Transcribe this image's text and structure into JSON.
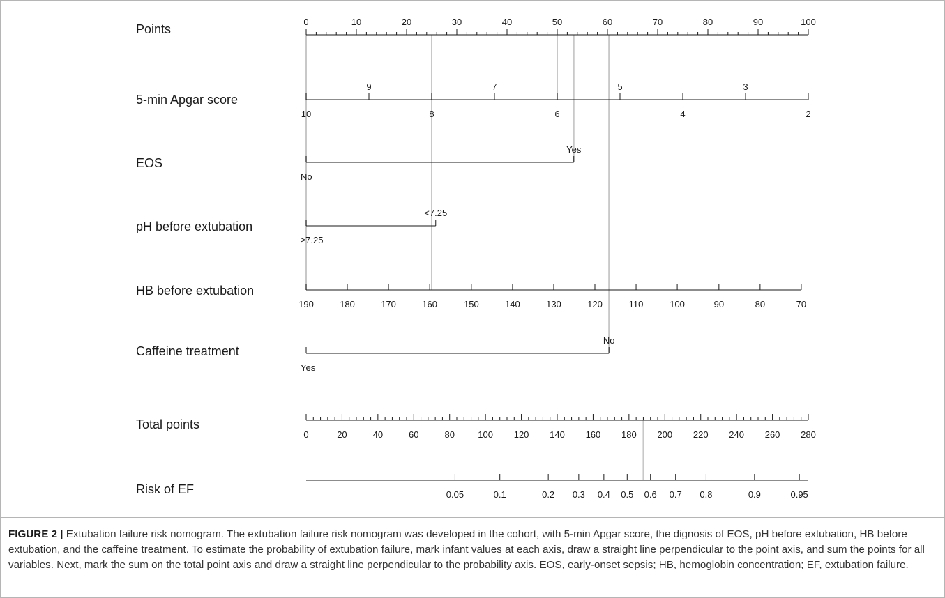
{
  "chart_data": {
    "type": "nomogram",
    "axes": [
      {
        "id": "points",
        "label": "Points",
        "range": [
          0,
          100
        ],
        "ticks_above": [
          {
            "v": 0,
            "t": "0"
          },
          {
            "v": 10,
            "t": "10"
          },
          {
            "v": 20,
            "t": "20"
          },
          {
            "v": 30,
            "t": "30"
          },
          {
            "v": 40,
            "t": "40"
          },
          {
            "v": 50,
            "t": "50"
          },
          {
            "v": 60,
            "t": "60"
          },
          {
            "v": 70,
            "t": "70"
          },
          {
            "v": 80,
            "t": "80"
          },
          {
            "v": 90,
            "t": "90"
          },
          {
            "v": 100,
            "t": "100"
          }
        ],
        "ticks_below": []
      },
      {
        "id": "apgar",
        "label": "5-min Apgar score",
        "range": [
          0,
          100
        ],
        "ticks_above": [
          {
            "v": 12.5,
            "t": "9"
          },
          {
            "v": 37.5,
            "t": "7"
          },
          {
            "v": 62.5,
            "t": "5"
          },
          {
            "v": 87.5,
            "t": "3"
          }
        ],
        "ticks_below": [
          {
            "v": 0,
            "t": "10"
          },
          {
            "v": 25,
            "t": "8"
          },
          {
            "v": 50,
            "t": "6"
          },
          {
            "v": 75,
            "t": "4"
          },
          {
            "v": 100,
            "t": "2"
          }
        ]
      },
      {
        "id": "eos",
        "label": "EOS",
        "range": [
          0,
          53.3
        ],
        "ticks_above": [
          {
            "v": 53.3,
            "t": "Yes"
          }
        ],
        "ticks_below": [
          {
            "v": 0,
            "t": "No"
          }
        ]
      },
      {
        "id": "ph",
        "label": "pH before extubation",
        "range": [
          0,
          25.8
        ],
        "ticks_above": [
          {
            "v": 25.8,
            "t": "<7.25"
          }
        ],
        "ticks_below": [
          {
            "v": 0,
            "t": "≥7.25"
          }
        ]
      },
      {
        "id": "hb",
        "label": "HB before extubation",
        "range": [
          0,
          98.6
        ],
        "ticks_above": [],
        "ticks_below": [
          {
            "v": 0,
            "t": "190"
          },
          {
            "v": 8.2,
            "t": "180"
          },
          {
            "v": 16.4,
            "t": "170"
          },
          {
            "v": 24.6,
            "t": "160"
          },
          {
            "v": 32.9,
            "t": "150"
          },
          {
            "v": 41.1,
            "t": "140"
          },
          {
            "v": 49.3,
            "t": "130"
          },
          {
            "v": 57.5,
            "t": "120"
          },
          {
            "v": 65.7,
            "t": "110"
          },
          {
            "v": 73.9,
            "t": "100"
          },
          {
            "v": 82.2,
            "t": "90"
          },
          {
            "v": 90.4,
            "t": "80"
          },
          {
            "v": 98.6,
            "t": "70"
          }
        ]
      },
      {
        "id": "caffeine",
        "label": "Caffeine treatment",
        "range": [
          0,
          60.3
        ],
        "ticks_above": [
          {
            "v": 60.3,
            "t": "No"
          }
        ],
        "ticks_below": [
          {
            "v": 0,
            "t": "Yes"
          }
        ]
      },
      {
        "id": "total",
        "label": "Total points",
        "range": [
          0,
          280
        ],
        "ticks_above": [],
        "ticks_below": [
          {
            "v": 0,
            "t": "0"
          },
          {
            "v": 20,
            "t": "20"
          },
          {
            "v": 40,
            "t": "40"
          },
          {
            "v": 60,
            "t": "60"
          },
          {
            "v": 80,
            "t": "80"
          },
          {
            "v": 100,
            "t": "100"
          },
          {
            "v": 120,
            "t": "120"
          },
          {
            "v": 140,
            "t": "140"
          },
          {
            "v": 160,
            "t": "160"
          },
          {
            "v": 180,
            "t": "180"
          },
          {
            "v": 200,
            "t": "200"
          },
          {
            "v": 220,
            "t": "220"
          },
          {
            "v": 240,
            "t": "240"
          },
          {
            "v": 260,
            "t": "260"
          },
          {
            "v": 280,
            "t": "280"
          }
        ]
      },
      {
        "id": "risk",
        "label": "Risk of EF",
        "range": [
          0,
          280
        ],
        "ticks_above": [],
        "ticks_below": [
          {
            "v": 83,
            "t": "0.05"
          },
          {
            "v": 108,
            "t": "0.1"
          },
          {
            "v": 135,
            "t": "0.2"
          },
          {
            "v": 152,
            "t": "0.3"
          },
          {
            "v": 166,
            "t": "0.4"
          },
          {
            "v": 179,
            "t": "0.5"
          },
          {
            "v": 192,
            "t": "0.6"
          },
          {
            "v": 206,
            "t": "0.7"
          },
          {
            "v": 223,
            "t": "0.8"
          },
          {
            "v": 250,
            "t": "0.9"
          },
          {
            "v": 275,
            "t": "0.95"
          }
        ]
      }
    ],
    "guide_lines": [
      {
        "scale": "points",
        "v": 0,
        "from": "points",
        "to": "hb"
      },
      {
        "scale": "points",
        "v": 25,
        "from": "points",
        "to": "hb"
      },
      {
        "scale": "points",
        "v": 50,
        "from": "points",
        "to": "apgar"
      },
      {
        "scale": "points",
        "v": 53.3,
        "from": "points",
        "to": "eos"
      },
      {
        "scale": "points",
        "v": 60.3,
        "from": "points",
        "to": "caffeine"
      },
      {
        "scale": "total",
        "v": 188,
        "from": "total",
        "to": "risk"
      }
    ]
  },
  "caption": {
    "label": "FIGURE 2 |",
    "text": "Extubation failure risk nomogram. The extubation failure risk nomogram was developed in the cohort, with 5-min Apgar score, the dignosis of EOS, pH before extubation, HB before extubation, and the caffeine treatment. To estimate the probability of extubation failure, mark infant values at each axis, draw a straight line perpendicular to the point axis, and sum the points for all variables. Next, mark the sum on the total point axis and draw a straight line perpendicular to the probability axis. EOS, early-onset sepsis; HB, hemoglobin concentration; EF, extubation failure."
  }
}
